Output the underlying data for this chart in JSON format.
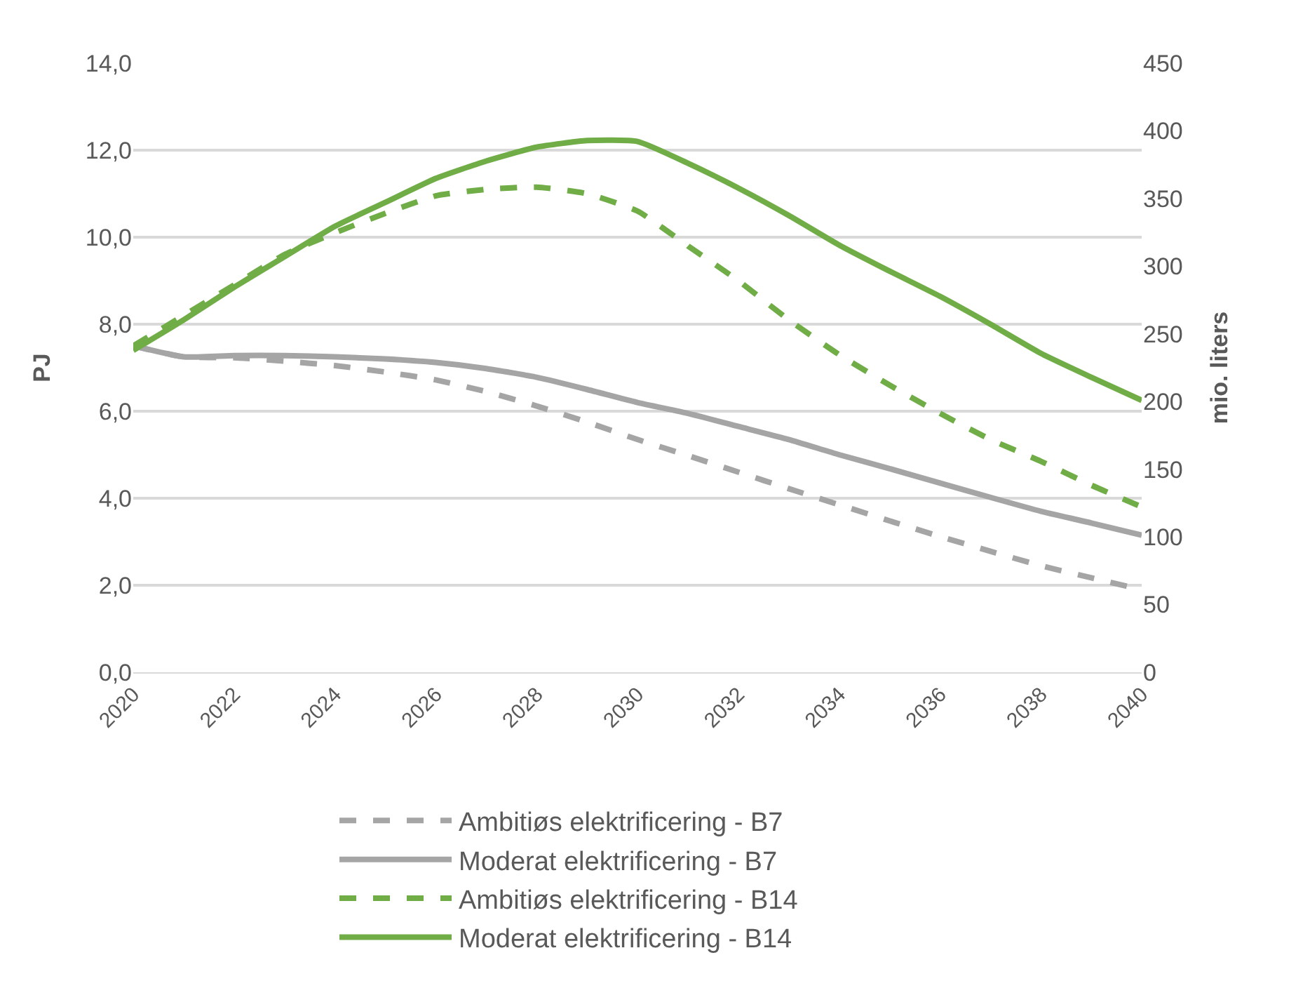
{
  "chart_data": {
    "type": "line",
    "ylabel": "PJ",
    "y2label": "mio. liters",
    "x": [
      2020,
      2021,
      2022,
      2023,
      2024,
      2025,
      2026,
      2027,
      2028,
      2029,
      2030,
      2031,
      2032,
      2033,
      2034,
      2035,
      2036,
      2037,
      2038,
      2039,
      2040
    ],
    "xlim": [
      2020,
      2040
    ],
    "xticks": [
      2020,
      2022,
      2024,
      2026,
      2028,
      2030,
      2032,
      2034,
      2036,
      2038,
      2040
    ],
    "ylim": [
      0,
      14
    ],
    "yticks": [
      {
        "value": 0,
        "label": "0,0"
      },
      {
        "value": 2,
        "label": "2,0"
      },
      {
        "value": 4,
        "label": "4,0"
      },
      {
        "value": 6,
        "label": "6,0"
      },
      {
        "value": 8,
        "label": "8,0"
      },
      {
        "value": 10,
        "label": "10,0"
      },
      {
        "value": 12,
        "label": "12,0"
      },
      {
        "value": 14,
        "label": "14,0"
      }
    ],
    "y2lim": [
      0,
      450
    ],
    "y2ticks": [
      0,
      50,
      100,
      150,
      200,
      250,
      300,
      350,
      400,
      450
    ],
    "grid": "y",
    "legend": "bottom",
    "marker": "none",
    "series": [
      {
        "name": "Ambitiøs elektrificering - B7",
        "color": "#a5a5a5",
        "line_style": "dashed",
        "values": [
          7.5,
          7.25,
          7.23,
          7.15,
          7.05,
          6.9,
          6.72,
          6.45,
          6.12,
          5.75,
          5.35,
          4.98,
          4.6,
          4.22,
          3.85,
          3.48,
          3.12,
          2.78,
          2.45,
          2.17,
          1.9
        ]
      },
      {
        "name": "Moderat elektrificering - B7",
        "color": "#a5a5a5",
        "line_style": "solid",
        "values": [
          7.5,
          7.25,
          7.28,
          7.28,
          7.25,
          7.2,
          7.12,
          6.98,
          6.78,
          6.5,
          6.2,
          5.95,
          5.65,
          5.35,
          5.0,
          4.68,
          4.35,
          4.02,
          3.7,
          3.43,
          3.15
        ]
      },
      {
        "name": "Ambitiøs elektrificering - B14",
        "color": "#70ad47",
        "line_style": "dashed",
        "values": [
          7.5,
          8.2,
          8.9,
          9.6,
          10.1,
          10.55,
          10.95,
          11.1,
          11.15,
          11.0,
          10.6,
          9.8,
          9.0,
          8.1,
          7.3,
          6.6,
          5.95,
          5.35,
          4.85,
          4.3,
          3.8
        ]
      },
      {
        "name": "Moderat elektrificering - B14",
        "color": "#70ad47",
        "line_style": "solid",
        "values": [
          7.4,
          8.1,
          8.85,
          9.55,
          10.25,
          10.8,
          11.35,
          11.75,
          12.07,
          12.22,
          12.2,
          11.7,
          11.13,
          10.5,
          9.82,
          9.22,
          8.64,
          8.0,
          7.33,
          6.78,
          6.25
        ]
      }
    ]
  }
}
